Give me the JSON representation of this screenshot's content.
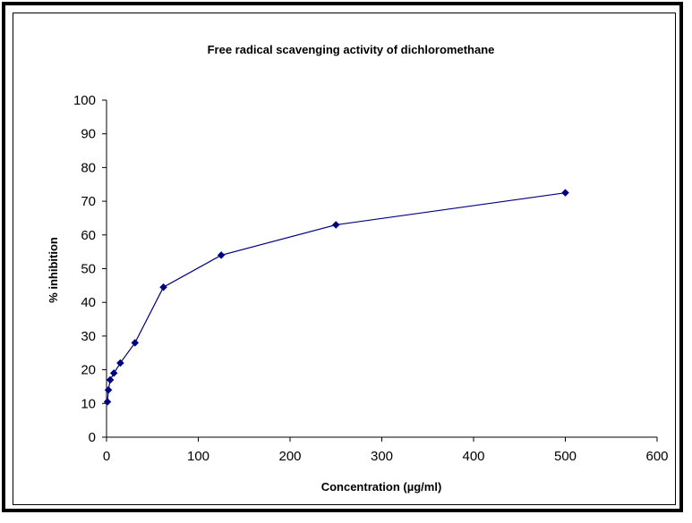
{
  "chart_data": {
    "type": "line",
    "title": "Free radical scavenging activity of dichloromethane",
    "xlabel": "Concentration (µg/ml)",
    "ylabel": "% inhibition",
    "xlim": [
      0,
      600
    ],
    "ylim": [
      0,
      100
    ],
    "x_ticks": [
      0,
      100,
      200,
      300,
      400,
      500,
      600
    ],
    "y_ticks": [
      0,
      10,
      20,
      30,
      40,
      50,
      60,
      70,
      80,
      90,
      100
    ],
    "grid": false,
    "legend": false,
    "series": [
      {
        "color": "#000080",
        "marker": "diamond",
        "points": [
          {
            "x": 1,
            "y": 10.5
          },
          {
            "x": 2,
            "y": 14
          },
          {
            "x": 4,
            "y": 17
          },
          {
            "x": 8,
            "y": 19
          },
          {
            "x": 15,
            "y": 22
          },
          {
            "x": 31,
            "y": 28
          },
          {
            "x": 62,
            "y": 44.5
          },
          {
            "x": 125,
            "y": 54
          },
          {
            "x": 250,
            "y": 63
          },
          {
            "x": 500,
            "y": 72.5
          }
        ]
      }
    ]
  }
}
